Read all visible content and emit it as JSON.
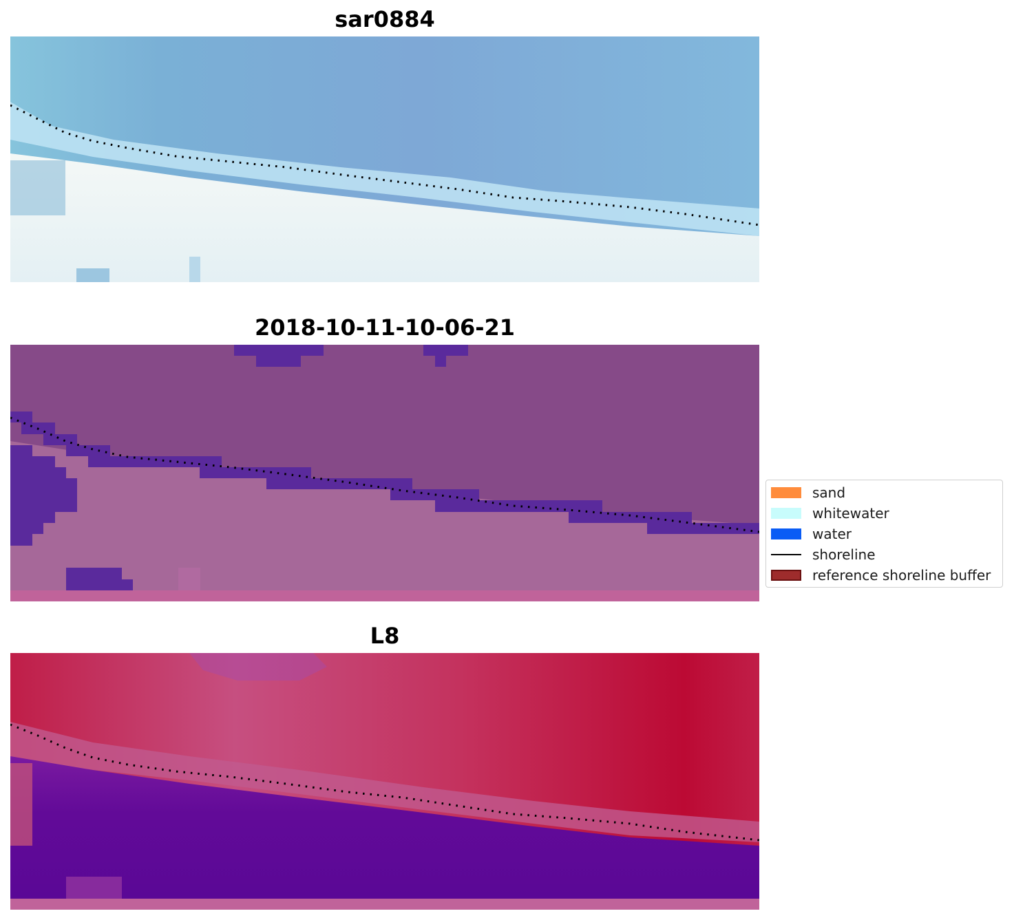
{
  "chart_data": [
    {
      "type": "heatmap",
      "title": "sar0884",
      "description_colors": {
        "ocean": "#7aaed6",
        "foam": "#dcf0f8",
        "beach": "#f2f7f7"
      },
      "shoreline": {
        "style": "dotted",
        "color": "#000000"
      }
    },
    {
      "type": "heatmap",
      "title": "2018-10-11-10-06-21",
      "description_colors": {
        "ocean": "#864a88",
        "land": "#a66899",
        "buffer": "#5a2a9c",
        "edge": "#c0639a"
      },
      "shoreline": {
        "style": "dotted",
        "color": "#000000"
      }
    },
    {
      "type": "heatmap",
      "title": "L8",
      "description_colors": {
        "water": "#c0244a",
        "transition": "#c05a8e",
        "land": "#5e0a96",
        "edge": "#c0639a"
      },
      "shoreline": {
        "style": "dotted",
        "color": "#000000"
      }
    }
  ],
  "legend": {
    "items": [
      {
        "label": "sand",
        "color": "#ff8c3c",
        "kind": "patch"
      },
      {
        "label": "whitewater",
        "color": "#c8fcfc",
        "kind": "patch"
      },
      {
        "label": "water",
        "color": "#0a5cf5",
        "kind": "patch"
      },
      {
        "label": "shoreline",
        "color": "#000000",
        "kind": "line"
      },
      {
        "label": "reference shoreline buffer",
        "color": "#9e2c2c",
        "kind": "patch-edge"
      }
    ]
  }
}
